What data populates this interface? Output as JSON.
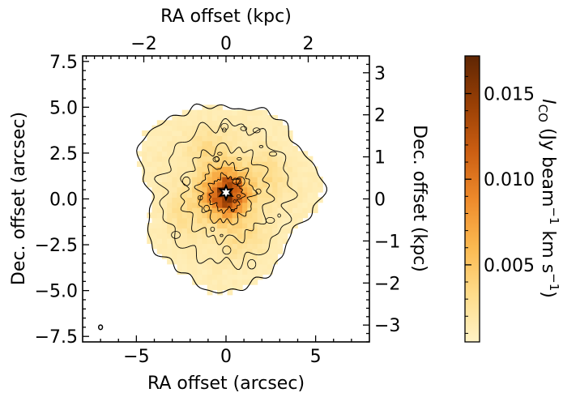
{
  "chart_data": {
    "type": "heatmap",
    "title": "",
    "xlabel": "RA offset (arcsec)",
    "ylabel": "Dec. offset (arcsec)",
    "top_xlabel": "RA offset (kpc)",
    "right_ylabel": "Dec. offset (kpc)",
    "xlim": [
      -8,
      8
    ],
    "ylim": [
      -7.8,
      7.8
    ],
    "xticks": [
      -5,
      0,
      5
    ],
    "xtick_labels": [
      "−5",
      "0",
      "5"
    ],
    "yticks": [
      -7.5,
      -5.0,
      -2.5,
      0.0,
      2.5,
      5.0,
      7.5
    ],
    "ytick_labels": [
      "−7.5",
      "−5.0",
      "−2.5",
      "0.0",
      "2.5",
      "5.0",
      "7.5"
    ],
    "top_xticks_kpc": [
      -2,
      0,
      2
    ],
    "top_xtick_labels": [
      "−2",
      "0",
      "2"
    ],
    "kpc_per_arcsec": 0.436,
    "right_yticks_kpc": [
      -3,
      -2,
      -1,
      0,
      1,
      2,
      3
    ],
    "right_ytick_labels": [
      "−3",
      "−2",
      "−1",
      "0",
      "1",
      "2",
      "3"
    ],
    "colorbar": {
      "label_prefix": "I",
      "label_sub": "CO",
      "label_units": " (Jy beam",
      "label_exp1": "−1",
      "label_kms": " km s",
      "label_exp2": "−1",
      "label_close": ")",
      "vmin": 0.0005,
      "vmax": 0.0172,
      "ticks": [
        0.005,
        0.01,
        0.015
      ],
      "tick_labels": [
        "0.005",
        "0.010",
        "0.015"
      ],
      "colormap": "YlOrBr",
      "stops": [
        "#fff3c5",
        "#fedc8a",
        "#fbb950",
        "#ee8a2b",
        "#cb5e12",
        "#983f05",
        "#5f2604"
      ]
    },
    "emission": {
      "center": [
        0.0,
        0.3
      ],
      "outer_radius_arcsec": 4.8,
      "peak": 0.0165,
      "edge": 0.0015
    },
    "beam_position": [
      -7.0,
      -7.0
    ]
  }
}
